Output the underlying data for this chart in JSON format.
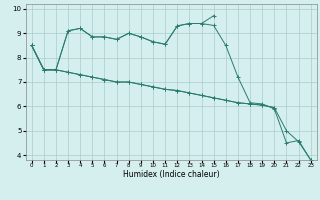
{
  "xlabel": "Humidex (Indice chaleur)",
  "bg_color": "#d5eeee",
  "grid_color": "#aacccc",
  "line_color": "#2a7d6e",
  "xlim": [
    -0.5,
    23.5
  ],
  "ylim": [
    3.8,
    10.2
  ],
  "xticks": [
    0,
    1,
    2,
    3,
    4,
    5,
    6,
    7,
    8,
    9,
    10,
    11,
    12,
    13,
    14,
    15,
    16,
    17,
    18,
    19,
    20,
    21,
    22,
    23
  ],
  "yticks": [
    4,
    5,
    6,
    7,
    8,
    9,
    10
  ],
  "line1_x": [
    0,
    1,
    2,
    3,
    4,
    5,
    6,
    7,
    8,
    9,
    10,
    11,
    12,
    13,
    14,
    15,
    16,
    17,
    18,
    19,
    20,
    21,
    22,
    23
  ],
  "line1_y": [
    8.5,
    7.5,
    7.5,
    9.1,
    9.2,
    8.85,
    8.85,
    8.75,
    9.0,
    8.85,
    8.65,
    8.55,
    9.3,
    9.4,
    9.4,
    9.32,
    8.5,
    7.2,
    6.15,
    6.1,
    5.9,
    4.5,
    4.6,
    3.8
  ],
  "line2_x": [
    0,
    1,
    2,
    3,
    4,
    5,
    6,
    7,
    8,
    9,
    10,
    11,
    12,
    13,
    14,
    15
  ],
  "line2_y": [
    8.5,
    7.5,
    7.5,
    9.1,
    9.2,
    8.85,
    8.85,
    8.75,
    9.0,
    8.85,
    8.65,
    8.55,
    9.3,
    9.4,
    9.4,
    9.72
  ],
  "line3_x": [
    0,
    1,
    2,
    3,
    4,
    5,
    6,
    7,
    8,
    9,
    10,
    11,
    12,
    13,
    14,
    15,
    16,
    17,
    18,
    19,
    20
  ],
  "line3_y": [
    8.5,
    7.5,
    7.5,
    7.4,
    7.3,
    7.2,
    7.1,
    7.0,
    7.0,
    6.9,
    6.8,
    6.7,
    6.65,
    6.55,
    6.45,
    6.35,
    6.25,
    6.15,
    6.1,
    6.05,
    5.95
  ],
  "line4_x": [
    0,
    1,
    2,
    3,
    4,
    5,
    6,
    7,
    8,
    9,
    10,
    11,
    12,
    13,
    14,
    15,
    16,
    17,
    18,
    19,
    20,
    21,
    22,
    23
  ],
  "line4_y": [
    8.5,
    7.5,
    7.5,
    7.4,
    7.3,
    7.2,
    7.1,
    7.0,
    7.0,
    6.9,
    6.8,
    6.7,
    6.65,
    6.55,
    6.45,
    6.35,
    6.25,
    6.15,
    6.1,
    6.05,
    5.95,
    5.0,
    4.55,
    3.8
  ]
}
